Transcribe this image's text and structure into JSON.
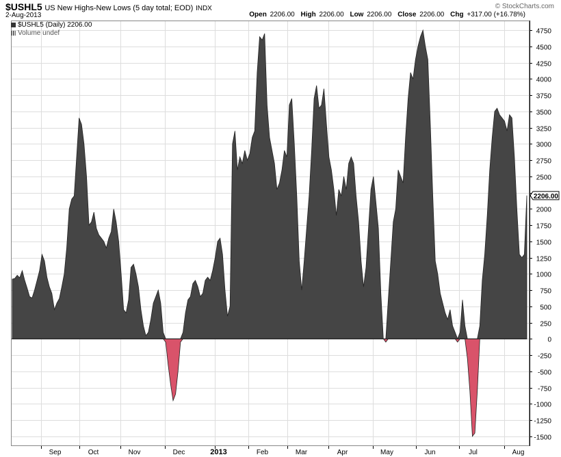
{
  "header": {
    "symbol": "$USHL5",
    "description": "US New Highs-New Lows (5 day total; EOD)",
    "exchange": "INDX",
    "date": "2-Aug-2013",
    "credit": "© StockCharts.com",
    "open_label": "Open",
    "open_value": "2206.00",
    "high_label": "High",
    "high_value": "2206.00",
    "low_label": "Low",
    "low_value": "2206.00",
    "close_label": "Close",
    "close_value": "2206.00",
    "chg_label": "Chg",
    "chg_value": "+317.00 (+16.78%)",
    "legend_series": "$USHL5 (Daily) 2206.00",
    "legend_volume": "Volume undef",
    "last_value_tag": "2206.00"
  },
  "colors": {
    "positive_fill": "#454545",
    "negative_fill": "#d9536a",
    "grid": "#dddddd",
    "axis": "#000000"
  },
  "chart_data": {
    "type": "area",
    "title": "$USHL5 US New Highs-New Lows (5 day total; EOD)",
    "series_name": "$USHL5 (Daily)",
    "baseline": 0,
    "ylim": [
      -1650,
      4900
    ],
    "yticks": [
      -1500,
      -1250,
      -1000,
      -750,
      -500,
      -250,
      0,
      250,
      500,
      750,
      1000,
      1250,
      1500,
      1750,
      2000,
      2250,
      2500,
      2750,
      3000,
      3250,
      3500,
      3750,
      4000,
      4250,
      4500,
      4750
    ],
    "x_labels": [
      "Sep",
      "Oct",
      "Nov",
      "Dec",
      "2013",
      "Feb",
      "Mar",
      "Apr",
      "May",
      "Jun",
      "Jul",
      "Aug"
    ],
    "x_label_bold": "2013",
    "grid": true,
    "last_value": 2206,
    "values": [
      920,
      930,
      980,
      940,
      1050,
      900,
      780,
      650,
      630,
      750,
      900,
      1050,
      1300,
      1200,
      950,
      800,
      700,
      450,
      550,
      620,
      800,
      1000,
      1400,
      2000,
      2150,
      2200,
      2800,
      3400,
      3300,
      3000,
      2500,
      1750,
      1800,
      1950,
      1700,
      1600,
      1550,
      1500,
      1400,
      1550,
      1650,
      2000,
      1800,
      1500,
      1000,
      450,
      400,
      600,
      1100,
      1150,
      1000,
      800,
      450,
      200,
      50,
      100,
      300,
      550,
      650,
      750,
      550,
      100,
      -50,
      -400,
      -700,
      -950,
      -850,
      -500,
      -50,
      100,
      400,
      600,
      650,
      850,
      900,
      800,
      650,
      700,
      900,
      950,
      900,
      1050,
      1250,
      1500,
      1550,
      1300,
      750,
      350,
      500,
      3000,
      3200,
      2600,
      2800,
      2700,
      2900,
      2750,
      2850,
      3100,
      3200,
      4100,
      4650,
      4600,
      4700,
      3600,
      3100,
      2900,
      2700,
      2300,
      2400,
      2600,
      2900,
      2800,
      3600,
      3700,
      3000,
      2200,
      1200,
      750,
      1200,
      1700,
      2200,
      2900,
      3700,
      3900,
      3550,
      3600,
      3850,
      3300,
      2800,
      2600,
      2300,
      1900,
      2300,
      2200,
      2500,
      2300,
      2700,
      2800,
      2700,
      2200,
      1800,
      1200,
      800,
      1100,
      1700,
      2300,
      2500,
      2100,
      1700,
      700,
      0,
      -50,
      600,
      1200,
      1800,
      2000,
      2600,
      2500,
      2400,
      3100,
      3700,
      4100,
      4000,
      4300,
      4500,
      4650,
      4750,
      4500,
      4300,
      3300,
      2200,
      1200,
      1000,
      700,
      550,
      400,
      300,
      450,
      200,
      100,
      -50,
      100,
      600,
      200,
      -300,
      -800,
      -1500,
      -1450,
      -800,
      200,
      900,
      1300,
      1900,
      2600,
      3100,
      3500,
      3550,
      3450,
      3400,
      3350,
      3200,
      3450,
      3400,
      2800,
      2000,
      1300,
      1250,
      1300,
      2206
    ]
  }
}
